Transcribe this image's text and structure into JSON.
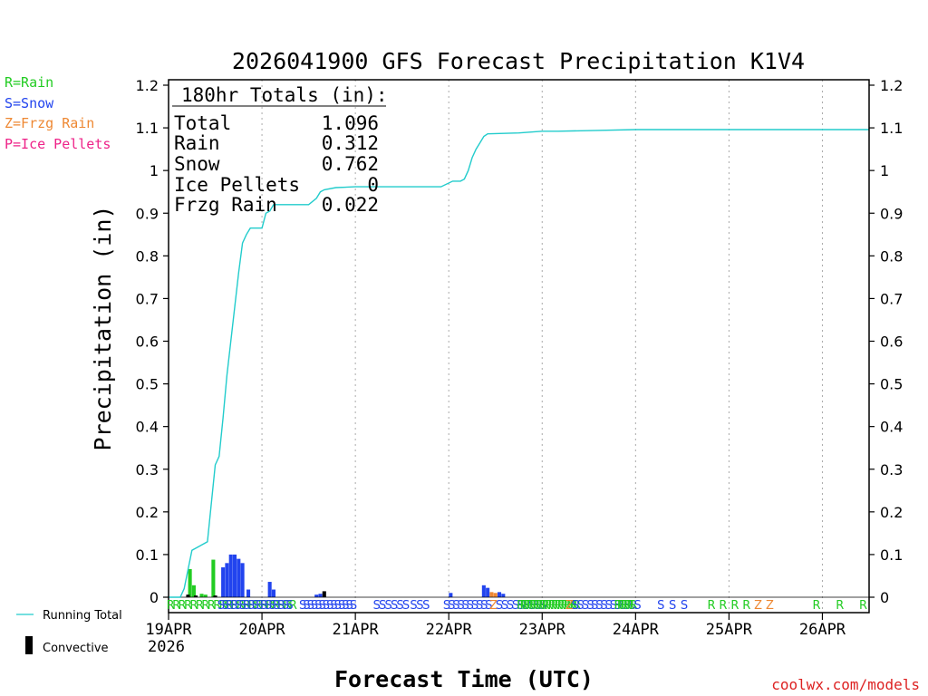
{
  "chart_data": {
    "type": "bar",
    "title": "2026041900 GFS Forecast Precipitation K1V4",
    "xlabel": "Forecast Time (UTC)",
    "ylabel": "Precipitation (in)",
    "ylim": [
      0,
      1.2
    ],
    "yticks": [
      "0",
      "0.1",
      "0.2",
      "0.3",
      "0.4",
      "0.5",
      "0.6",
      "0.7",
      "0.8",
      "0.9",
      "1",
      "1.1",
      "1.2"
    ],
    "xlim_hours": [
      0,
      180
    ],
    "x_date_ticks": [
      {
        "hour": 0,
        "label": "19APR"
      },
      {
        "hour": 24,
        "label": "20APR"
      },
      {
        "hour": 48,
        "label": "21APR"
      },
      {
        "hour": 72,
        "label": "22APR"
      },
      {
        "hour": 96,
        "label": "23APR"
      },
      {
        "hour": 120,
        "label": "24APR"
      },
      {
        "hour": 144,
        "label": "25APR"
      },
      {
        "hour": 168,
        "label": "26APR"
      }
    ],
    "x_year_label": "2026",
    "legend_types": [
      {
        "label": "R=Rain",
        "color": "#22cc22"
      },
      {
        "label": "S=Snow",
        "color": "#2244ee"
      },
      {
        "label": "Z=Frzg Rain",
        "color": "#ee8833"
      },
      {
        "label": "P=Ice Pellets",
        "color": "#ee2288"
      }
    ],
    "legend_lines": [
      {
        "label": "Running Total",
        "color": "#22cccc"
      },
      {
        "label": "Convective",
        "color": "#000000"
      }
    ],
    "totals_box": {
      "header": "180hr Totals (in):",
      "rows": [
        {
          "label": "Total",
          "value": "1.096"
        },
        {
          "label": "Rain",
          "value": "0.312"
        },
        {
          "label": "Snow",
          "value": "0.762"
        },
        {
          "label": "Ice Pellets",
          "value": "0"
        },
        {
          "label": "Frzg Rain",
          "value": "0.022"
        }
      ]
    },
    "series": [
      {
        "name": "Rain",
        "color": "#22cc22",
        "points": [
          [
            5.5,
            0.066
          ],
          [
            6.5,
            0.028
          ],
          [
            8.5,
            0.008
          ],
          [
            9.5,
            0.006
          ],
          [
            11.5,
            0.088
          ]
        ]
      },
      {
        "name": "Snow",
        "color": "#2244ee",
        "points": [
          [
            14.0,
            0.07
          ],
          [
            15.0,
            0.08
          ],
          [
            16.0,
            0.1
          ],
          [
            17.0,
            0.1
          ],
          [
            18.0,
            0.09
          ],
          [
            19.0,
            0.08
          ],
          [
            20.5,
            0.018
          ],
          [
            26.0,
            0.036
          ],
          [
            27.0,
            0.018
          ],
          [
            38.0,
            0.006
          ],
          [
            39.0,
            0.008
          ],
          [
            72.5,
            0.01
          ],
          [
            81.0,
            0.028
          ],
          [
            82.0,
            0.022
          ],
          [
            85.0,
            0.012
          ],
          [
            86.0,
            0.008
          ]
        ]
      },
      {
        "name": "Frzg Rain",
        "color": "#ee8833",
        "points": [
          [
            83.0,
            0.012
          ],
          [
            84.0,
            0.01
          ]
        ]
      },
      {
        "name": "Convective",
        "color": "#000000",
        "points": [
          [
            5.0,
            0.006
          ],
          [
            7.0,
            0.004
          ],
          [
            12.0,
            0.004
          ],
          [
            40.0,
            0.014
          ]
        ]
      }
    ],
    "running_total": {
      "name": "Running Total",
      "color": "#22cccc",
      "x": [
        0,
        3,
        4,
        6,
        8,
        10,
        12,
        13,
        14,
        15,
        16,
        17,
        18,
        19,
        20,
        21,
        22,
        24,
        25,
        26,
        27,
        28,
        36,
        38,
        39,
        40,
        43,
        48,
        56,
        70,
        73,
        75,
        76,
        77,
        78,
        79,
        80,
        81,
        82,
        90,
        96,
        100,
        110,
        120,
        130,
        150,
        170,
        180
      ],
      "y": [
        0,
        0,
        0.02,
        0.11,
        0.12,
        0.13,
        0.31,
        0.33,
        0.42,
        0.52,
        0.6,
        0.68,
        0.76,
        0.83,
        0.85,
        0.865,
        0.865,
        0.865,
        0.9,
        0.905,
        0.92,
        0.92,
        0.92,
        0.935,
        0.95,
        0.955,
        0.96,
        0.962,
        0.962,
        0.962,
        0.975,
        0.975,
        0.98,
        1.0,
        1.03,
        1.05,
        1.065,
        1.08,
        1.086,
        1.088,
        1.092,
        1.092,
        1.094,
        1.096,
        1.096,
        1.096,
        1.096,
        1.096
      ]
    },
    "type_markers": [
      {
        "start": 0.5,
        "step": 1.5,
        "letters": "RRRRRRRRRRRRRRRRRRRRRR"
      },
      {
        "start": 13.5,
        "step": 1.1,
        "letters": "SSSSSSSSSSSSSSSSS"
      },
      {
        "start": 34.5,
        "step": 1.0,
        "letters": "SSSSSSSSSSSSSS"
      },
      {
        "start": 53.5,
        "step": 1.5,
        "letters": "SSSSSS"
      },
      {
        "start": 63.0,
        "step": 1.6,
        "letters": "SSS"
      },
      {
        "start": 71.5,
        "step": 1.2,
        "letters": "SSSSSSSSSS"
      },
      {
        "start": 83.5,
        "step": 1.0,
        "letters": "Z"
      },
      {
        "start": 85.0,
        "step": 1.4,
        "letters": "SSSSSSSSS"
      },
      {
        "start": 90.5,
        "step": 0.8,
        "letters": "RRRRRRRRRRRRRRRRRRR"
      },
      {
        "start": 103.0,
        "step": 1.0,
        "letters": "Z"
      },
      {
        "start": 104.5,
        "step": 1.3,
        "letters": "SSSS"
      },
      {
        "start": 109.5,
        "step": 1.2,
        "letters": "SSSSSSSSS"
      },
      {
        "start": 115.5,
        "step": 0.8,
        "letters": "RRRRRR"
      },
      {
        "start": 120.5,
        "step": 1.0,
        "letters": "S"
      },
      {
        "start": 126.5,
        "step": 3.0,
        "letters": "SSS"
      },
      {
        "start": 139.5,
        "step": 3.0,
        "letters": "RRRR"
      },
      {
        "start": 151.5,
        "step": 3.0,
        "letters": "ZZ"
      },
      {
        "start": 166.5,
        "step": 6.0,
        "letters": "RRR"
      }
    ],
    "credit": "coolwx.com/models"
  }
}
